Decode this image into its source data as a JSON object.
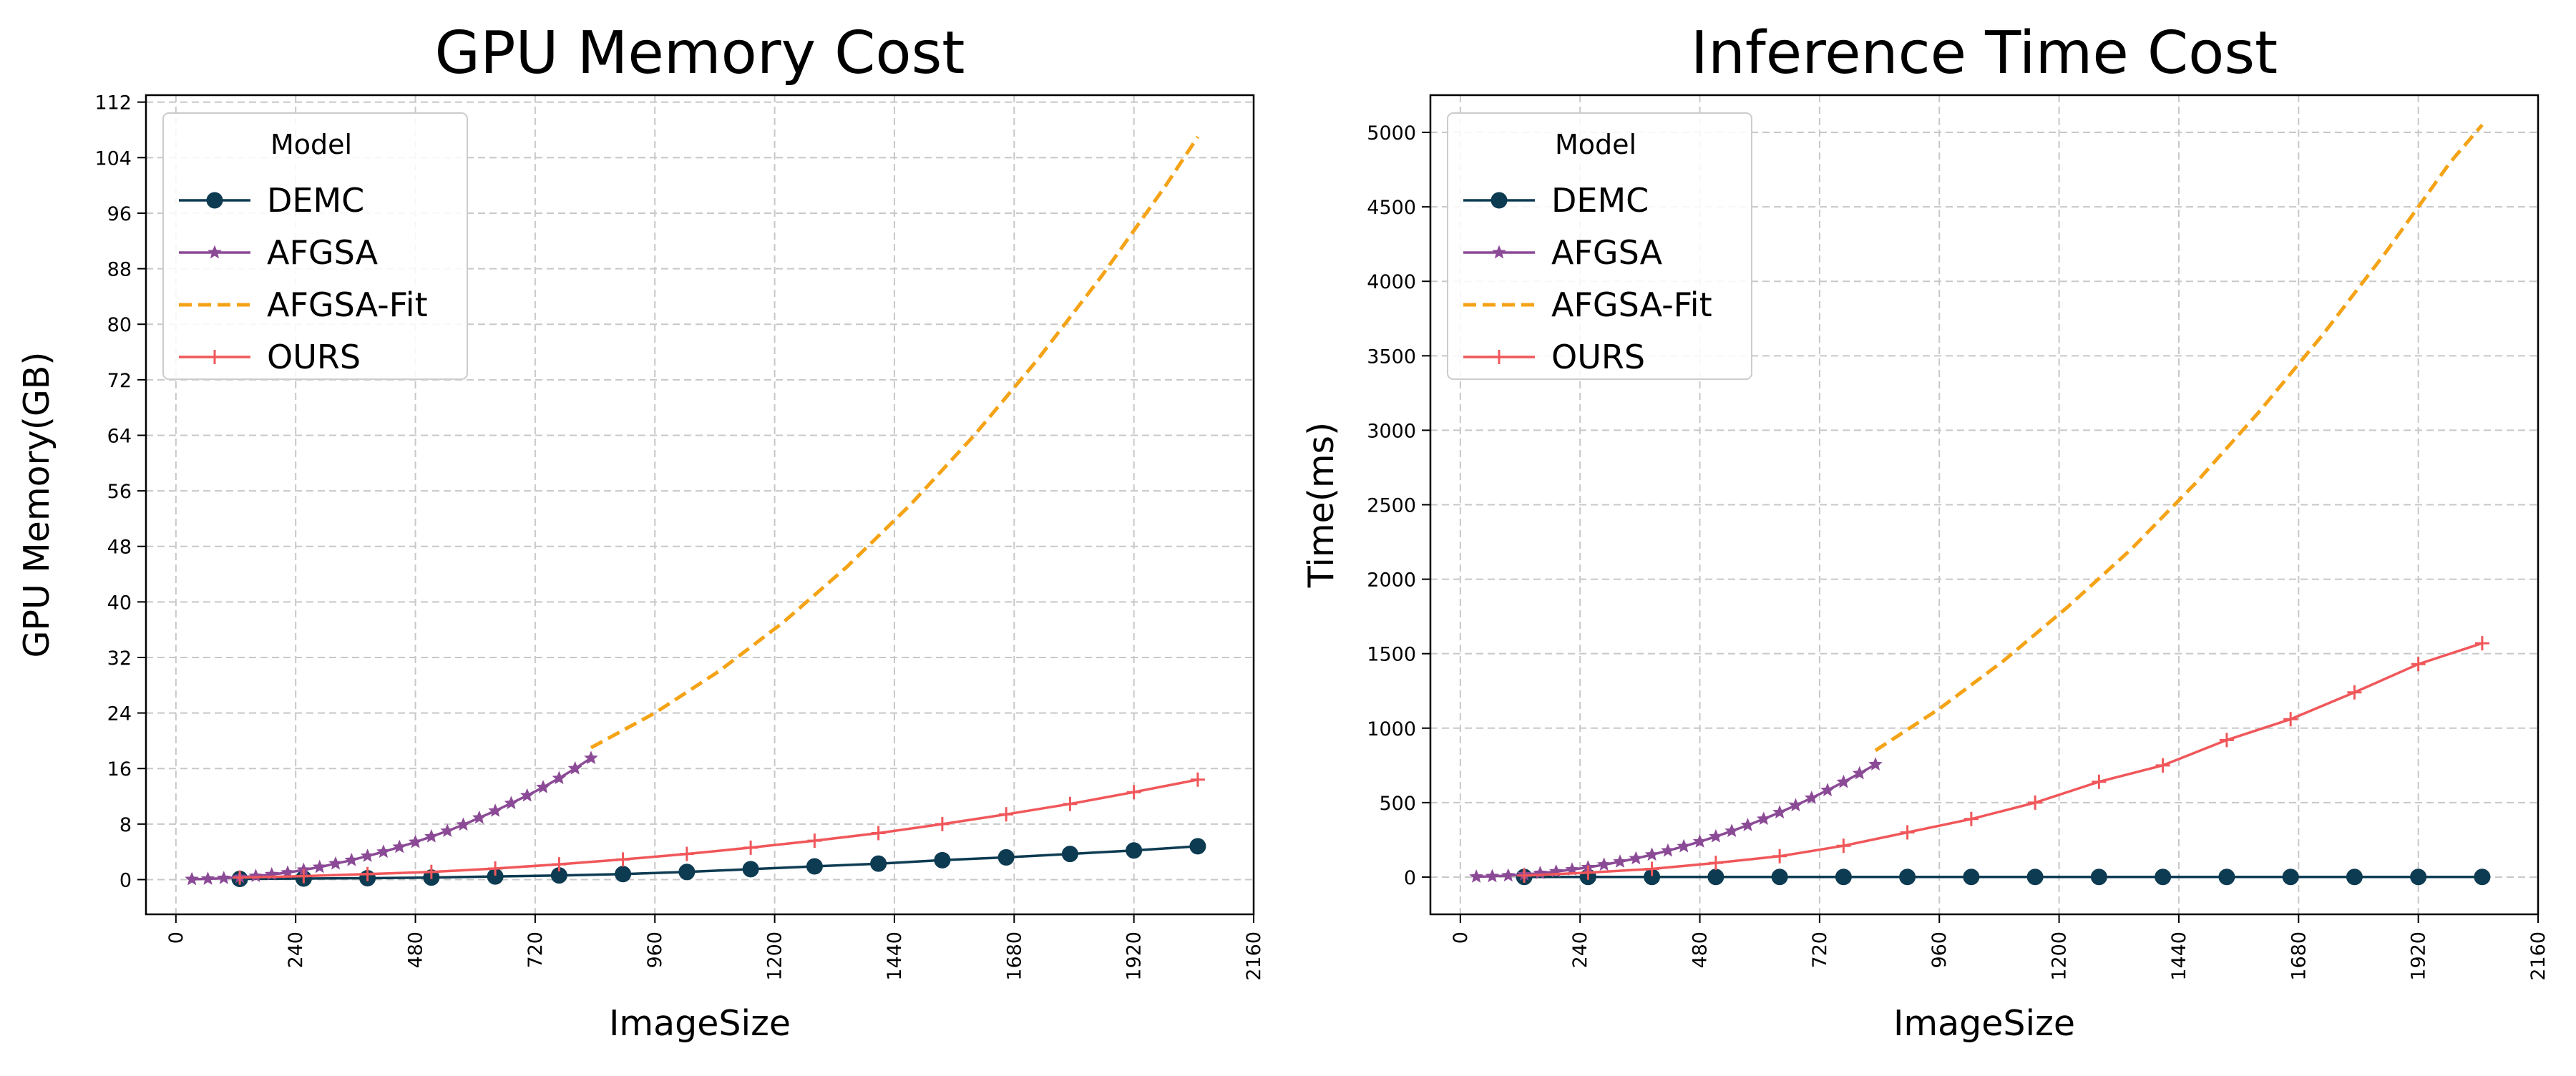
{
  "legend_title": "Model",
  "colors": {
    "DEMC": "#0d3b52",
    "AFGSA": "#8b4a96",
    "AFGSA-Fit": "#f5a316",
    "OURS": "#f0575a",
    "grid": "#c8c8c8"
  },
  "chart_data": [
    {
      "type": "line",
      "title": "GPU Memory Cost",
      "xlabel": "ImageSize",
      "ylabel": "GPU Memory(GB)",
      "xlim": [
        -60,
        2160
      ],
      "ylim": [
        -5,
        113
      ],
      "xticks": [
        0,
        240,
        480,
        720,
        960,
        1200,
        1440,
        1680,
        1920,
        2160
      ],
      "yticks": [
        0,
        8,
        16,
        24,
        32,
        40,
        48,
        56,
        64,
        72,
        80,
        88,
        96,
        104,
        112
      ],
      "grid": true,
      "legend_position": "top-left",
      "series": [
        {
          "name": "DEMC",
          "marker": "circle",
          "line": "solid",
          "x": [
            128,
            256,
            384,
            512,
            640,
            768,
            896,
            1024,
            1152,
            1280,
            1408,
            1536,
            1664,
            1792,
            1920,
            2048
          ],
          "y": [
            0.1,
            0.15,
            0.2,
            0.3,
            0.45,
            0.6,
            0.8,
            1.1,
            1.5,
            1.9,
            2.3,
            2.8,
            3.2,
            3.7,
            4.2,
            4.8
          ]
        },
        {
          "name": "AFGSA",
          "marker": "star",
          "line": "solid",
          "x": [
            32,
            64,
            96,
            128,
            160,
            192,
            224,
            256,
            288,
            320,
            352,
            384,
            416,
            448,
            480,
            512,
            544,
            576,
            608,
            640,
            672,
            704,
            736,
            768,
            800,
            832
          ],
          "y": [
            0.05,
            0.1,
            0.2,
            0.35,
            0.5,
            0.75,
            1.0,
            1.4,
            1.8,
            2.3,
            2.8,
            3.4,
            4.0,
            4.7,
            5.4,
            6.2,
            7.0,
            7.9,
            8.9,
            9.9,
            11.0,
            12.1,
            13.3,
            14.6,
            16.0,
            17.5
          ]
        },
        {
          "name": "AFGSA-Fit",
          "marker": "none",
          "line": "dashed",
          "x": [
            832,
            960,
            1088,
            1216,
            1344,
            1472,
            1600,
            1728,
            1856,
            1984,
            2048
          ],
          "y": [
            19,
            24,
            30,
            37,
            45,
            54,
            64,
            75,
            87,
            100,
            107
          ]
        },
        {
          "name": "OURS",
          "marker": "plus",
          "line": "solid",
          "x": [
            128,
            256,
            384,
            512,
            640,
            768,
            896,
            1024,
            1152,
            1280,
            1408,
            1536,
            1664,
            1792,
            1920,
            2048
          ],
          "y": [
            0.3,
            0.5,
            0.8,
            1.1,
            1.6,
            2.2,
            2.9,
            3.7,
            4.6,
            5.6,
            6.7,
            8.0,
            9.4,
            10.9,
            12.6,
            14.4
          ]
        }
      ]
    },
    {
      "type": "line",
      "title": "Inference Time Cost",
      "xlabel": "ImageSize",
      "ylabel": "Time(ms)",
      "xlim": [
        -60,
        2160
      ],
      "ylim": [
        -250,
        5250
      ],
      "xticks": [
        0,
        240,
        480,
        720,
        960,
        1200,
        1440,
        1680,
        1920,
        2160
      ],
      "yticks": [
        0,
        500,
        1000,
        1500,
        2000,
        2500,
        3000,
        3500,
        4000,
        4500,
        5000
      ],
      "grid": true,
      "legend_position": "top-left",
      "series": [
        {
          "name": "DEMC",
          "marker": "circle",
          "line": "solid",
          "x": [
            128,
            256,
            384,
            512,
            640,
            768,
            896,
            1024,
            1152,
            1280,
            1408,
            1536,
            1664,
            1792,
            1920,
            2048
          ],
          "y": [
            1,
            1,
            1,
            1,
            1,
            1,
            1,
            1,
            1,
            1,
            1,
            1,
            1,
            1,
            1,
            1
          ]
        },
        {
          "name": "AFGSA",
          "marker": "star",
          "line": "solid",
          "x": [
            32,
            64,
            96,
            128,
            160,
            192,
            224,
            256,
            288,
            320,
            352,
            384,
            416,
            448,
            480,
            512,
            544,
            576,
            608,
            640,
            672,
            704,
            736,
            768,
            800,
            832
          ],
          "y": [
            2,
            5,
            10,
            17,
            26,
            37,
            50,
            65,
            83,
            103,
            125,
            150,
            177,
            206,
            238,
            272,
            309,
            348,
            390,
            434,
            481,
            531,
            583,
            638,
            696,
            756
          ]
        },
        {
          "name": "AFGSA-Fit",
          "marker": "none",
          "line": "dashed",
          "x": [
            832,
            960,
            1088,
            1216,
            1344,
            1472,
            1600,
            1728,
            1856,
            1984,
            2048
          ],
          "y": [
            850,
            1130,
            1450,
            1810,
            2200,
            2640,
            3120,
            3640,
            4200,
            4800,
            5050
          ]
        },
        {
          "name": "OURS",
          "marker": "plus",
          "line": "solid",
          "x": [
            128,
            256,
            384,
            512,
            640,
            768,
            896,
            1024,
            1152,
            1280,
            1408,
            1536,
            1664,
            1792,
            1920,
            2048
          ],
          "y": [
            10,
            30,
            55,
            95,
            140,
            210,
            300,
            390,
            500,
            640,
            750,
            920,
            1060,
            1240,
            1430,
            1570
          ]
        }
      ]
    }
  ]
}
